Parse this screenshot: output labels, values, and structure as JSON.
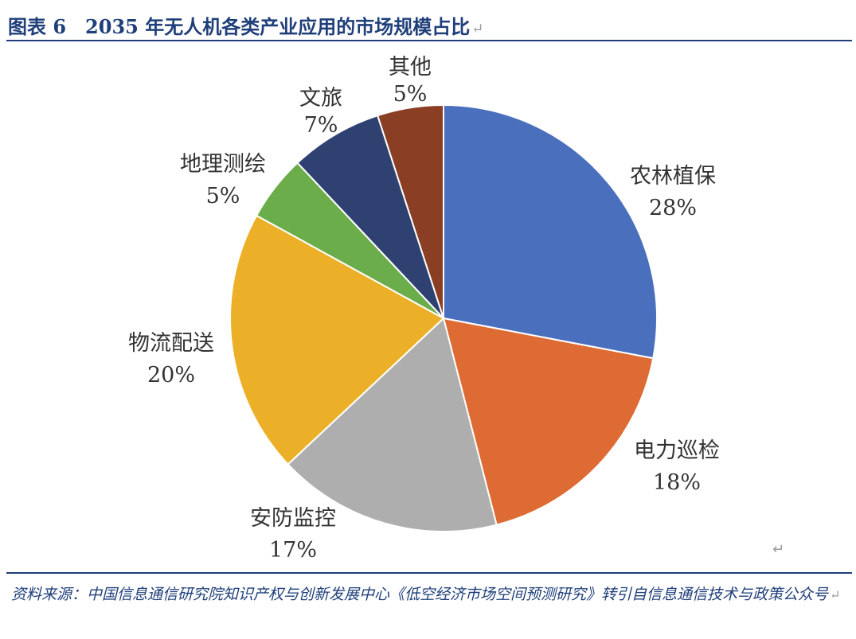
{
  "figure": {
    "title": "图表 6　2035 年无人机各类产业应用的市场规模占比",
    "source": "资料来源：中国信息通信研究院知识产权与创新发展中心《低空经济市场空间预测研究》转引自信息通信技术与政策公众号",
    "return_mark": "↵"
  },
  "chart_data": {
    "type": "pie",
    "title": "",
    "unit": "%",
    "start": "12 o'clock, clockwise",
    "slices": [
      {
        "name": "农林植保",
        "value": 28,
        "label": "28%",
        "color": "#4a6fbd"
      },
      {
        "name": "电力巡检",
        "value": 18,
        "label": "18%",
        "color": "#de6b33"
      },
      {
        "name": "安防监控",
        "value": 17,
        "label": "17%",
        "color": "#aeaeae"
      },
      {
        "name": "物流配送",
        "value": 20,
        "label": "20%",
        "color": "#ecb028"
      },
      {
        "name": "地理测绘",
        "value": 5,
        "label": "5%",
        "color": "#6bad4a"
      },
      {
        "name": "文旅",
        "value": 7,
        "label": "7%",
        "color": "#2e4171"
      },
      {
        "name": "其他",
        "value": 5,
        "label": "5%",
        "color": "#8a3f24"
      }
    ]
  }
}
